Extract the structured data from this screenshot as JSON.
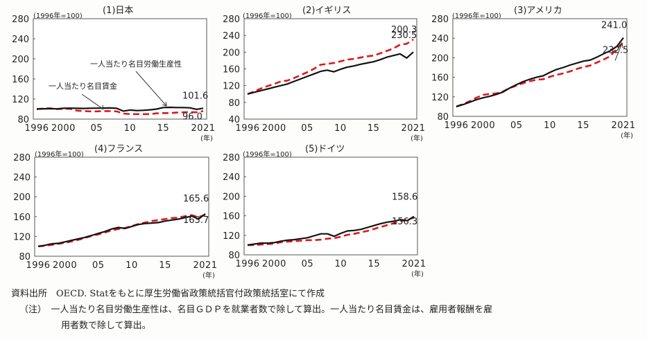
{
  "chart_data": [
    {
      "type": "line",
      "title": "(1)日本",
      "unit_label": "(1996年=100)",
      "x_unit": "(年)",
      "x": [
        1996,
        1997,
        1998,
        1999,
        2000,
        2001,
        2002,
        2003,
        2004,
        2005,
        2006,
        2007,
        2008,
        2009,
        2010,
        2011,
        2012,
        2013,
        2014,
        2015,
        2016,
        2017,
        2018,
        2019,
        2020,
        2021
      ],
      "xticks": [
        1996,
        2000,
        2005,
        2010,
        2015,
        2021
      ],
      "xtick_labels": [
        "1996",
        "2000",
        "05",
        "10",
        "15",
        "2021"
      ],
      "ylim": [
        80,
        280
      ],
      "yticks": [
        80,
        120,
        160,
        200,
        240,
        280
      ],
      "series": [
        {
          "name": "一人当たり名目労働生産性",
          "style": "solid",
          "color": "#111111",
          "values": [
            100,
            100.5,
            100.8,
            100.4,
            101.5,
            101.8,
            101.5,
            101.3,
            101.6,
            101.8,
            102.0,
            102.2,
            101.5,
            96.0,
            98.0,
            97.0,
            97.5,
            98.5,
            100.0,
            103.0,
            103.5,
            103.0,
            103.0,
            102.5,
            99.5,
            101.6
          ]
        },
        {
          "name": "一人当たり名目賃金",
          "style": "dashed",
          "color": "#e0151b",
          "values": [
            100,
            101,
            101.5,
            100,
            100.5,
            100.5,
            97,
            96,
            95.5,
            95.5,
            96,
            96,
            95.5,
            91,
            90,
            90,
            90,
            90,
            91.5,
            92,
            92,
            93,
            93.5,
            94,
            93.5,
            96.0
          ]
        }
      ],
      "end_labels": [
        "101.6",
        "96.0"
      ],
      "annotations": [
        {
          "text": "一人当たり名目労働生産性",
          "series": 0
        },
        {
          "text": "一人当たり名目賃金",
          "series": 1
        }
      ]
    },
    {
      "type": "line",
      "title": "(2)イギリス",
      "unit_label": "(1996年=100)",
      "x_unit": "(年)",
      "x": [
        1996,
        1997,
        1998,
        1999,
        2000,
        2001,
        2002,
        2003,
        2004,
        2005,
        2006,
        2007,
        2008,
        2009,
        2010,
        2011,
        2012,
        2013,
        2014,
        2015,
        2016,
        2017,
        2018,
        2019,
        2020,
        2021
      ],
      "xticks": [
        1996,
        2000,
        2005,
        2010,
        2015,
        2021
      ],
      "xtick_labels": [
        "1996",
        "2000",
        "05",
        "10",
        "15",
        "2021"
      ],
      "ylim": [
        40,
        280
      ],
      "yticks": [
        40,
        80,
        120,
        160,
        200,
        240,
        280
      ],
      "series": [
        {
          "name": "一人当たり名目労働生産性",
          "style": "solid",
          "color": "#111111",
          "values": [
            100,
            104,
            108,
            112,
            116,
            120,
            124,
            130,
            136,
            142,
            148,
            154,
            157,
            153,
            159,
            164,
            167,
            171,
            174,
            177,
            182,
            188,
            192,
            196,
            186,
            200.3
          ]
        },
        {
          "name": "一人当たり名目賃金",
          "style": "dashed",
          "color": "#e0151b",
          "values": [
            100,
            106,
            113,
            119,
            124,
            130,
            132,
            138,
            145,
            152,
            160,
            170,
            172,
            174,
            178,
            182,
            184,
            187,
            190,
            192,
            197,
            203,
            209,
            218,
            220,
            230.5
          ]
        }
      ],
      "end_labels": [
        "230.5",
        "200.3"
      ]
    },
    {
      "type": "line",
      "title": "(3)アメリカ",
      "unit_label": "(1996年=100)",
      "x_unit": "(年)",
      "x": [
        1996,
        1997,
        1998,
        1999,
        2000,
        2001,
        2002,
        2003,
        2004,
        2005,
        2006,
        2007,
        2008,
        2009,
        2010,
        2011,
        2012,
        2013,
        2014,
        2015,
        2016,
        2017,
        2018,
        2019,
        2020,
        2021
      ],
      "xticks": [
        1996,
        2000,
        2005,
        2010,
        2015,
        2021
      ],
      "xtick_labels": [
        "1996",
        "2000",
        "05",
        "10",
        "15",
        "2021"
      ],
      "ylim": [
        80,
        280
      ],
      "yticks": [
        80,
        120,
        160,
        200,
        240,
        280
      ],
      "series": [
        {
          "name": "一人当たり名目労働生産性",
          "style": "solid",
          "color": "#111111",
          "values": [
            100,
            104,
            109,
            114,
            118,
            121,
            125,
            130,
            138,
            145,
            151,
            156,
            160,
            163,
            170,
            176,
            180,
            185,
            189,
            193,
            195,
            201,
            208,
            214,
            223,
            241.0
          ]
        },
        {
          "name": "一人当たり名目賃金",
          "style": "dashed",
          "color": "#e0151b",
          "values": [
            100,
            105,
            111,
            118,
            124,
            126,
            127,
            131,
            138,
            143,
            148,
            152,
            155,
            156,
            161,
            165,
            168,
            172,
            177,
            181,
            184,
            190,
            196,
            203,
            218,
            232.5
          ]
        }
      ],
      "end_labels": [
        "241.0",
        "232.5"
      ]
    },
    {
      "type": "line",
      "title": "(4)フランス",
      "unit_label": "(1996年=100)",
      "x_unit": "(年)",
      "x": [
        1996,
        1997,
        1998,
        1999,
        2000,
        2001,
        2002,
        2003,
        2004,
        2005,
        2006,
        2007,
        2008,
        2009,
        2010,
        2011,
        2012,
        2013,
        2014,
        2015,
        2016,
        2017,
        2018,
        2019,
        2020,
        2021
      ],
      "xticks": [
        1996,
        2000,
        2005,
        2010,
        2015,
        2021
      ],
      "xtick_labels": [
        "1996",
        "2000",
        "05",
        "10",
        "15",
        "2021"
      ],
      "ylim": [
        80,
        280
      ],
      "yticks": [
        80,
        120,
        160,
        200,
        240,
        280
      ],
      "series": [
        {
          "name": "一人当たり名目労働生産性",
          "style": "solid",
          "color": "#111111",
          "values": [
            100,
            102,
            105,
            106,
            109,
            112,
            115,
            118,
            122,
            126,
            130,
            135,
            138,
            136,
            140,
            144,
            146,
            147,
            148,
            151,
            153,
            155,
            158,
            161,
            155,
            165.6
          ]
        },
        {
          "name": "一人当たり名目賃金",
          "style": "dashed",
          "color": "#e0151b",
          "values": [
            100,
            101,
            103,
            105,
            107,
            110,
            113,
            117,
            121,
            124,
            128,
            132,
            135,
            137,
            141,
            145,
            148,
            151,
            153,
            155,
            157,
            158,
            161,
            163,
            159,
            163.7
          ]
        }
      ],
      "end_labels": [
        "165.6",
        "163.7"
      ]
    },
    {
      "type": "line",
      "title": "(5)ドイツ",
      "unit_label": "(1996年=100)",
      "x_unit": "(年)",
      "x": [
        1996,
        1997,
        1998,
        1999,
        2000,
        2001,
        2002,
        2003,
        2004,
        2005,
        2006,
        2007,
        2008,
        2009,
        2010,
        2011,
        2012,
        2013,
        2014,
        2015,
        2016,
        2017,
        2018,
        2019,
        2020,
        2021
      ],
      "xticks": [
        1996,
        2000,
        2005,
        2010,
        2015,
        2021
      ],
      "xtick_labels": [
        "1996",
        "2000",
        "05",
        "10",
        "15",
        "2021"
      ],
      "ylim": [
        80,
        280
      ],
      "yticks": [
        80,
        120,
        160,
        200,
        240,
        280
      ],
      "series": [
        {
          "name": "一人当たり名目労働生産性",
          "style": "solid",
          "color": "#111111",
          "values": [
            100,
            102,
            104,
            104,
            105,
            108,
            110,
            111,
            113,
            115,
            119,
            123,
            123,
            118,
            124,
            129,
            130,
            132,
            136,
            140,
            144,
            147,
            149,
            152,
            150,
            158.6
          ]
        },
        {
          "name": "一人当たり名目賃金",
          "style": "dashed",
          "color": "#e0151b",
          "values": [
            100,
            100,
            101,
            102,
            103,
            106,
            107,
            108,
            109,
            110,
            110,
            111,
            113,
            114,
            117,
            121,
            123,
            126,
            129,
            133,
            137,
            141,
            145,
            149,
            152,
            156.3
          ]
        }
      ],
      "end_labels": [
        "158.6",
        "156.3"
      ]
    }
  ],
  "notes": {
    "source": "資料出所　OECD. Statをもとに厚生労働省政策統括官付政策統括室にて作成",
    "note_line1": "（注）　一人当たり名目労働生産性は、名目ＧＤＰを就業者数で除して算出。一人当たり名目賃金は、雇用者報酬を雇",
    "note_line2": "用者数で除して算出。"
  }
}
